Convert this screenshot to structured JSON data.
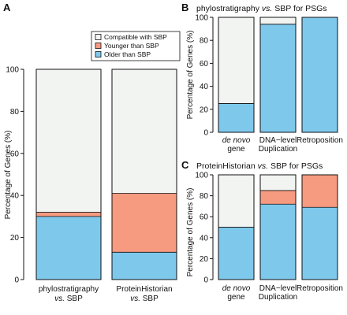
{
  "colors": {
    "compatible": "#f1f4f1",
    "younger": "#f69a80",
    "older": "#7ec8ec",
    "stroke": "#111111"
  },
  "chart_data": [
    {
      "panel": "A",
      "type": "bar",
      "stacked": true,
      "ylabel": "Percentage of Genes (%)",
      "ylim": [
        0,
        100
      ],
      "yticks": [
        "0",
        "20",
        "40",
        "60",
        "80",
        "100"
      ],
      "categories": [
        {
          "line1": "phylostratigraphy",
          "line2": "vs.",
          "line3": "SBP"
        },
        {
          "line1": "ProteinHistorian",
          "line2": "vs.",
          "line3": "SBP"
        }
      ],
      "legend": {
        "position": "top",
        "entries": [
          {
            "key": "compatible",
            "label": "Compatible with SBP"
          },
          {
            "key": "younger",
            "label": "Younger than SBP"
          },
          {
            "key": "older",
            "label": "Older than SBP"
          }
        ]
      },
      "series": [
        {
          "key": "older",
          "values": [
            30,
            13
          ]
        },
        {
          "key": "younger",
          "values": [
            2,
            28
          ]
        },
        {
          "key": "compatible",
          "values": [
            68,
            59
          ]
        }
      ]
    },
    {
      "panel": "B",
      "type": "bar",
      "stacked": true,
      "title": "phylostratigraphy vs. SBP for PSGs",
      "title_parts": {
        "pre": "phylostratigraphy ",
        "ital": "vs.",
        "post": " SBP for PSGs"
      },
      "ylabel": "Percentage of Genes (%)",
      "ylim": [
        0,
        100
      ],
      "yticks": [
        "0",
        "20",
        "40",
        "60",
        "80",
        "100"
      ],
      "categories": [
        {
          "line1": "de novo",
          "line2": "gene",
          "italic_line1": true
        },
        {
          "line1": "DNA−level",
          "line2": "Duplication",
          "italic_line1": false
        },
        {
          "line1": "Retroposition",
          "line2": "",
          "italic_line1": false
        }
      ],
      "series": [
        {
          "key": "older",
          "values": [
            25,
            94,
            100
          ]
        },
        {
          "key": "younger",
          "values": [
            0,
            0,
            0
          ]
        },
        {
          "key": "compatible",
          "values": [
            75,
            6,
            0
          ]
        }
      ]
    },
    {
      "panel": "C",
      "type": "bar",
      "stacked": true,
      "title": "ProteinHistorian vs. SBP for PSGs",
      "title_parts": {
        "pre": "ProteinHistorian ",
        "ital": "vs.",
        "post": " SBP for PSGs"
      },
      "ylabel": "Percentage of Genes (%)",
      "ylim": [
        0,
        100
      ],
      "yticks": [
        "0",
        "20",
        "40",
        "60",
        "80",
        "100"
      ],
      "categories": [
        {
          "line1": "de novo",
          "line2": "gene",
          "italic_line1": true
        },
        {
          "line1": "DNA−level",
          "line2": "Duplication",
          "italic_line1": false
        },
        {
          "line1": "Retroposition",
          "line2": "",
          "italic_line1": false
        }
      ],
      "series": [
        {
          "key": "older",
          "values": [
            50,
            72,
            69
          ]
        },
        {
          "key": "younger",
          "values": [
            0,
            13,
            31
          ]
        },
        {
          "key": "compatible",
          "values": [
            50,
            15,
            0
          ]
        }
      ]
    }
  ]
}
